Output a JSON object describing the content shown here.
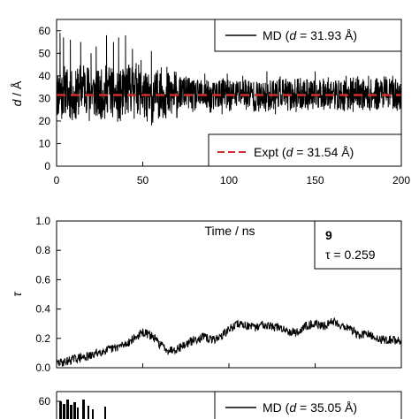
{
  "chart_data": [
    {
      "type": "line",
      "xlabel": "Time / ns",
      "ylabel": "d / Å",
      "xlim": [
        0,
        200
      ],
      "ylim": [
        0,
        65
      ],
      "xticks": [
        "0",
        "50",
        "100",
        "150",
        "200"
      ],
      "yticks": [
        "0",
        "10",
        "20",
        "30",
        "40",
        "50",
        "60"
      ],
      "series": [
        {
          "name": "MD (d = 31.93 Å)",
          "color": "#000000",
          "baseline": 31.9,
          "noise": 7,
          "x": [
            0,
            5,
            10,
            15,
            20,
            25,
            30,
            35,
            40,
            45,
            50,
            55,
            60,
            65,
            70,
            75,
            80,
            85,
            90,
            95,
            100,
            105,
            110,
            115,
            120,
            125,
            130,
            135,
            140,
            145,
            150,
            155,
            160,
            165,
            170,
            175,
            180,
            185,
            190,
            195,
            200
          ],
          "y": [
            32,
            34,
            30,
            36,
            33,
            31,
            35,
            30,
            33,
            36,
            32,
            29,
            33,
            31,
            32,
            33,
            31,
            32,
            30,
            33,
            31,
            32,
            33,
            31,
            30,
            32,
            33,
            31,
            32,
            32,
            31,
            33,
            32,
            31,
            32,
            33,
            31,
            32,
            33,
            32,
            31
          ],
          "peaks": [
            {
              "x": 2,
              "y": 59
            },
            {
              "x": 4,
              "y": 57
            },
            {
              "x": 8,
              "y": 56
            },
            {
              "x": 14,
              "y": 55
            },
            {
              "x": 20,
              "y": 50
            },
            {
              "x": 23,
              "y": 53
            },
            {
              "x": 29,
              "y": 58
            },
            {
              "x": 33,
              "y": 55
            },
            {
              "x": 36,
              "y": 57
            },
            {
              "x": 40,
              "y": 58
            },
            {
              "x": 44,
              "y": 52
            },
            {
              "x": 49,
              "y": 47
            },
            {
              "x": 55,
              "y": 51
            },
            {
              "x": 60,
              "y": 41
            },
            {
              "x": 64,
              "y": 44
            },
            {
              "x": 86,
              "y": 41
            },
            {
              "x": 99,
              "y": 41
            },
            {
              "x": 108,
              "y": 40
            },
            {
              "x": 122,
              "y": 42
            },
            {
              "x": 150,
              "y": 42
            },
            {
              "x": 168,
              "y": 40
            },
            {
              "x": 181,
              "y": 40
            },
            {
              "x": 195,
              "y": 40
            }
          ],
          "troughs": [
            {
              "x": 3,
              "y": 21
            },
            {
              "x": 11,
              "y": 22
            },
            {
              "x": 19,
              "y": 20
            },
            {
              "x": 28,
              "y": 21
            },
            {
              "x": 37,
              "y": 20
            },
            {
              "x": 45,
              "y": 21
            },
            {
              "x": 52,
              "y": 22
            },
            {
              "x": 63,
              "y": 23
            },
            {
              "x": 70,
              "y": 25
            },
            {
              "x": 79,
              "y": 24
            },
            {
              "x": 96,
              "y": 23
            },
            {
              "x": 110,
              "y": 25
            },
            {
              "x": 127,
              "y": 23
            },
            {
              "x": 139,
              "y": 24
            },
            {
              "x": 155,
              "y": 25
            },
            {
              "x": 172,
              "y": 24
            },
            {
              "x": 186,
              "y": 25
            },
            {
              "x": 198,
              "y": 27
            }
          ]
        },
        {
          "name": "Expt (d = 31.54 Å)",
          "color": "#d42a2a",
          "dashed": true,
          "constant": 31.54
        }
      ],
      "legend": [
        {
          "label_prefix": "MD (",
          "var": "d",
          "label_suffix": " = 31.93 Å)",
          "placement": "top-right"
        },
        {
          "label_prefix": "Expt (",
          "var": "d",
          "label_suffix": " = 31.54 Å)",
          "placement": "bottom-right"
        }
      ]
    },
    {
      "type": "line",
      "xlabel": "",
      "ylabel": "τ",
      "xlim": [
        0,
        200
      ],
      "ylim": [
        0,
        1.0
      ],
      "yticks": [
        "0.0",
        "0.2",
        "0.4",
        "0.6",
        "0.8",
        "1.0"
      ],
      "annotation": {
        "label": "9",
        "value_text": "τ = 0.259",
        "placement": "top-right"
      },
      "series": [
        {
          "name": "",
          "color": "#000000",
          "noise": 0.03,
          "x": [
            0,
            5,
            10,
            15,
            20,
            25,
            30,
            35,
            40,
            45,
            50,
            55,
            60,
            65,
            70,
            75,
            80,
            85,
            90,
            95,
            100,
            105,
            110,
            115,
            120,
            125,
            130,
            135,
            140,
            145,
            150,
            155,
            160,
            165,
            170,
            175,
            180,
            185,
            190,
            195,
            200
          ],
          "y": [
            0.03,
            0.04,
            0.06,
            0.07,
            0.08,
            0.11,
            0.12,
            0.14,
            0.16,
            0.2,
            0.24,
            0.22,
            0.16,
            0.12,
            0.13,
            0.16,
            0.19,
            0.21,
            0.19,
            0.21,
            0.26,
            0.3,
            0.29,
            0.27,
            0.3,
            0.28,
            0.27,
            0.25,
            0.24,
            0.29,
            0.3,
            0.28,
            0.32,
            0.29,
            0.27,
            0.22,
            0.23,
            0.2,
            0.19,
            0.19,
            0.18
          ]
        }
      ]
    },
    {
      "type": "line",
      "xlabel": "",
      "ylabel": "",
      "xlim": [
        0,
        200
      ],
      "ylim": [
        0,
        65
      ],
      "yticks": [
        "60"
      ],
      "series": [
        {
          "name": "MD (d = 35.05 Å)",
          "color": "#000000"
        }
      ],
      "legend": [
        {
          "label_prefix": "MD (",
          "var": "d",
          "label_suffix": " = 35.05 Å)",
          "placement": "top-right"
        }
      ]
    }
  ]
}
